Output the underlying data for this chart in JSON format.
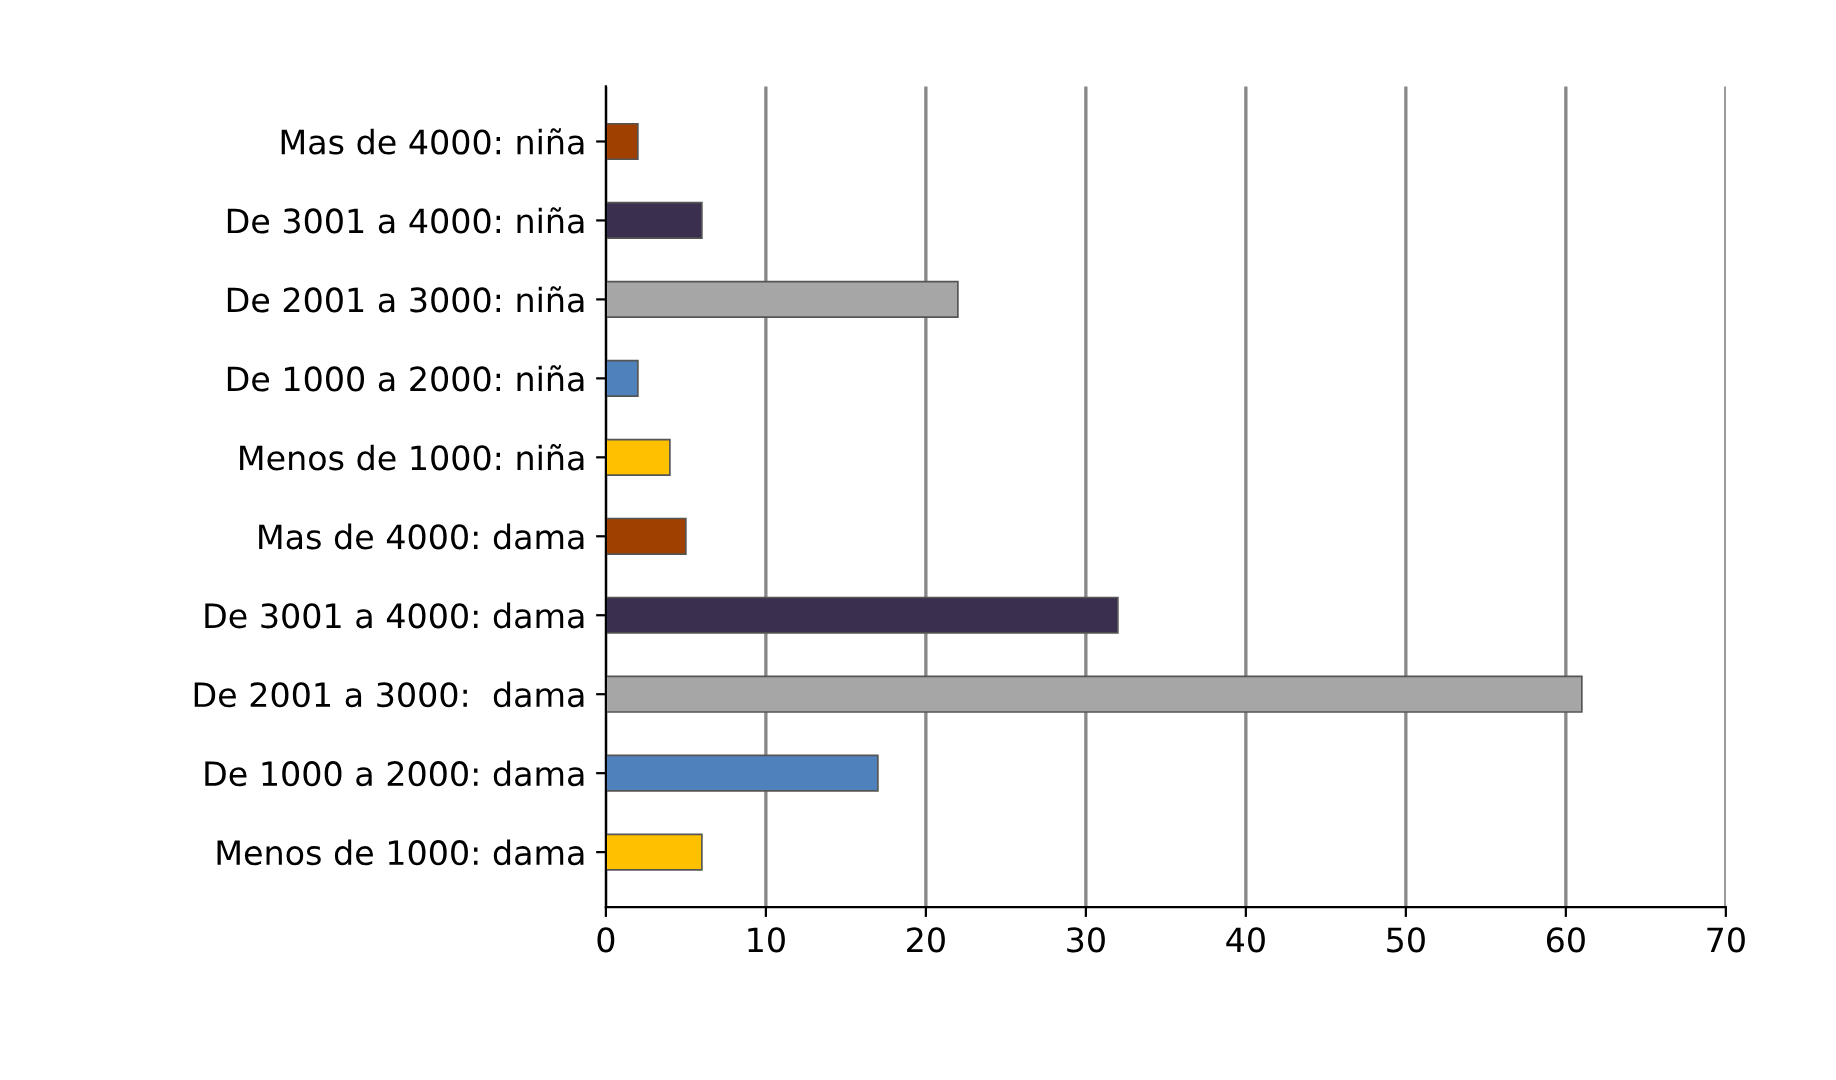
{
  "chart_data": {
    "type": "bar",
    "orientation": "horizontal",
    "categories": [
      "Mas de 4000: niña",
      "De 3001 a 4000: niña",
      "De 2001 a 3000: niña",
      "De 1000 a 2000: niña",
      "Menos de 1000: niña",
      "Mas de 4000: dama",
      "De 3001 a 4000: dama",
      "De 2001 a 3000:  dama",
      "De 1000 a 2000: dama",
      "Menos de 1000: dama"
    ],
    "values": [
      2,
      6,
      22,
      2,
      4,
      5,
      32,
      61,
      17,
      6
    ],
    "colors": [
      "#a04000",
      "#3b2f4f",
      "#a6a6a6",
      "#4f81bd",
      "#ffc000",
      "#a04000",
      "#3b2f4f",
      "#a6a6a6",
      "#4f81bd",
      "#ffc000"
    ],
    "xlim": [
      0,
      70
    ],
    "xticks": [
      0,
      10,
      20,
      30,
      40,
      50,
      60,
      70
    ],
    "grid": "x"
  }
}
